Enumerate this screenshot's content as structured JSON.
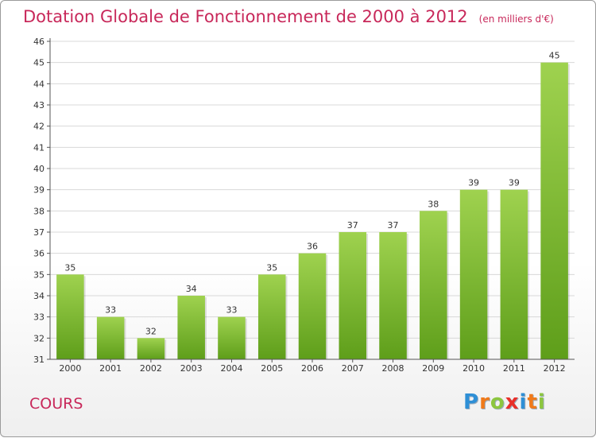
{
  "header": {
    "title": "Dotation Globale de Fonctionnement de 2000 à 2012",
    "subtitle": "(en milliers d'€)"
  },
  "footer": {
    "city": "COURS",
    "logo_letters": [
      "P",
      "r",
      "o",
      "x",
      "i",
      "t",
      "i"
    ],
    "logo_colors": [
      "#2e8fd6",
      "#f07a1a",
      "#8cc63f",
      "#e8302a",
      "#2e8fd6",
      "#f07a1a",
      "#8cc63f"
    ]
  },
  "colors": {
    "bar_top": "#9fd24f",
    "bar_bottom": "#5e9e1a",
    "grid": "#d8d8d8",
    "accent": "#c8285a"
  },
  "chart_data": {
    "type": "bar",
    "categories": [
      "2000",
      "2001",
      "2002",
      "2003",
      "2004",
      "2005",
      "2006",
      "2007",
      "2008",
      "2009",
      "2010",
      "2011",
      "2012"
    ],
    "values": [
      35,
      33,
      32,
      34,
      33,
      35,
      36,
      37,
      37,
      38,
      39,
      39,
      45
    ],
    "title": "Dotation Globale de Fonctionnement de 2000 à 2012",
    "subtitle": "(en milliers d'€)",
    "xlabel": "",
    "ylabel": "",
    "ylim": [
      31,
      46
    ],
    "yticks": [
      31,
      32,
      33,
      34,
      35,
      36,
      37,
      38,
      39,
      40,
      41,
      42,
      43,
      44,
      45,
      46
    ],
    "grid": true,
    "data_labels": true
  }
}
